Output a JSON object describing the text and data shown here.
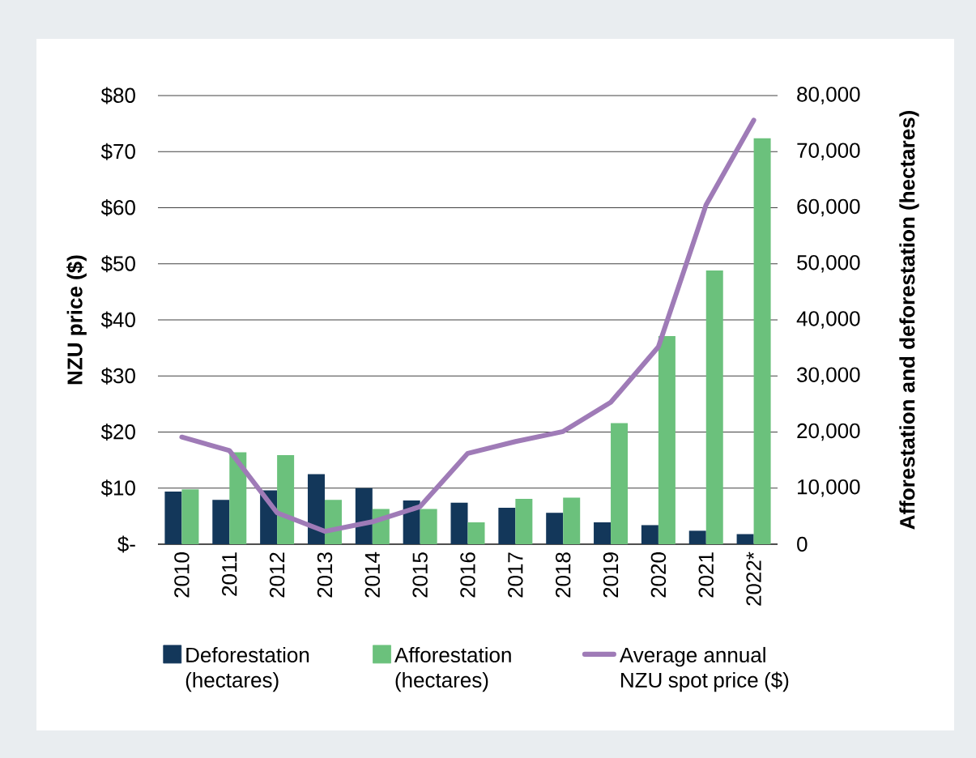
{
  "chart_data": {
    "type": "bar",
    "categories": [
      "2010",
      "2011",
      "2012",
      "2013",
      "2014",
      "2015",
      "2016",
      "2017",
      "2018",
      "2019",
      "2020",
      "2021",
      "2022*"
    ],
    "ylabel": "NZU price ($)",
    "y2label": "Afforestation and deforestation (hectares)",
    "ylim": [
      0,
      80
    ],
    "yticks": [
      {
        "value": 0,
        "label": "$-"
      },
      {
        "value": 10,
        "label": "$10"
      },
      {
        "value": 20,
        "label": "$20"
      },
      {
        "value": 30,
        "label": "$30"
      },
      {
        "value": 40,
        "label": "$40"
      },
      {
        "value": 50,
        "label": "$50"
      },
      {
        "value": 60,
        "label": "$60"
      },
      {
        "value": 70,
        "label": "$70"
      },
      {
        "value": 80,
        "label": "$80"
      }
    ],
    "y2lim": [
      0,
      80000
    ],
    "y2ticks": [
      0,
      {
        "value": 10000,
        "label": "10,000"
      },
      {
        "value": 20000,
        "label": "20,000"
      },
      {
        "value": 30000,
        "label": "30,000"
      },
      {
        "value": 40000,
        "label": "40,000"
      },
      {
        "value": 50000,
        "label": "50,000"
      },
      {
        "value": 60000,
        "label": "60,000"
      },
      {
        "value": 70000,
        "label": "70,000"
      },
      {
        "value": 80000,
        "label": "80,000"
      }
    ],
    "series": [
      {
        "name": "Deforestation (hectares)",
        "color": "#13375a",
        "axis": "y2",
        "values": [
          9400,
          7900,
          9600,
          12500,
          10000,
          7800,
          7400,
          6500,
          5600,
          3900,
          3400,
          2400,
          1800
        ]
      },
      {
        "name": "Afforestation (hectares)",
        "color": "#6bc17c",
        "axis": "y2",
        "values": [
          9800,
          16400,
          15900,
          7900,
          6300,
          6300,
          3900,
          8100,
          8300,
          21600,
          37100,
          48800,
          72400
        ]
      },
      {
        "name": "Average annual NZU spot price ($)",
        "type": "line",
        "color": "#9f7bb7",
        "values": [
          19.1,
          16.7,
          5.6,
          2.3,
          4.0,
          6.7,
          16.2,
          18.3,
          20.1,
          25.3,
          35.2,
          60.5,
          75.6
        ]
      }
    ],
    "grid": "y",
    "legend": "bottom"
  }
}
